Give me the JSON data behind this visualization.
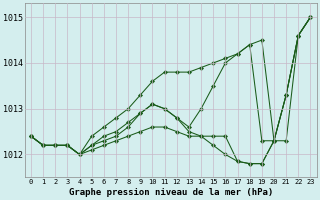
{
  "title": "Graphe pression niveau de la mer (hPa)",
  "background_color": "#d4eeee",
  "grid_color": "#c8b8c8",
  "line_color": "#1a5c1a",
  "ylim": [
    1011.5,
    1015.3
  ],
  "yticks": [
    1012,
    1013,
    1014,
    1015
  ],
  "x_labels": [
    "0",
    "1",
    "2",
    "3",
    "4",
    "5",
    "6",
    "7",
    "8",
    "9",
    "10",
    "11",
    "12",
    "13",
    "14",
    "15",
    "16",
    "17",
    "18",
    "19",
    "20",
    "21",
    "22",
    "23"
  ],
  "series": [
    [
      1012.4,
      1012.2,
      1012.2,
      1012.2,
      1012.0,
      1012.1,
      1012.2,
      1012.3,
      1012.4,
      1012.5,
      1012.6,
      1012.6,
      1012.5,
      1012.4,
      1012.4,
      1012.4,
      1012.4,
      1011.85,
      1011.8,
      1011.8,
      1012.3,
      1012.3,
      1014.6,
      1015.0
    ],
    [
      1012.4,
      1012.2,
      1012.2,
      1012.2,
      1012.0,
      1012.2,
      1012.3,
      1012.4,
      1012.6,
      1012.9,
      1013.1,
      1013.0,
      1012.8,
      1012.5,
      1012.4,
      1012.2,
      1012.0,
      1011.85,
      1011.8,
      1011.8,
      1012.3,
      1013.3,
      1014.6,
      1015.0
    ],
    [
      1012.4,
      1012.2,
      1012.2,
      1012.2,
      1012.0,
      1012.2,
      1012.4,
      1012.5,
      1012.7,
      1012.9,
      1013.1,
      1013.0,
      1012.8,
      1012.6,
      1013.0,
      1013.5,
      1014.0,
      1014.2,
      1014.4,
      1012.3,
      1012.3,
      1013.3,
      1014.6,
      1015.0
    ],
    [
      1012.4,
      1012.2,
      1012.2,
      1012.2,
      1012.0,
      1012.4,
      1012.6,
      1012.8,
      1013.0,
      1013.3,
      1013.6,
      1013.8,
      1013.8,
      1013.8,
      1013.9,
      1014.0,
      1014.1,
      1014.2,
      1014.4,
      1014.5,
      1012.3,
      1013.3,
      1014.6,
      1015.0
    ]
  ]
}
